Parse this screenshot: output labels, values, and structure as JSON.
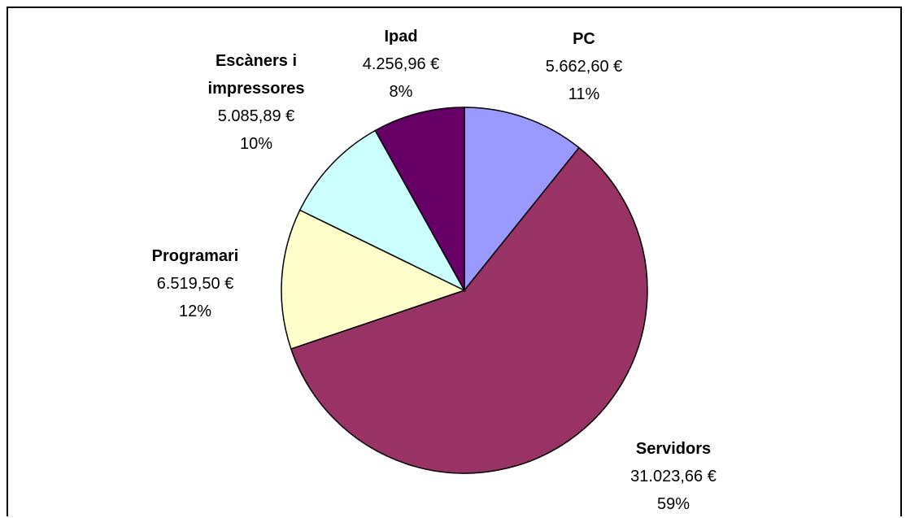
{
  "chart_data": {
    "type": "pie",
    "categories": [
      "PC",
      "Servidors",
      "Programari",
      "Escàners i impressores",
      "Ipad"
    ],
    "values": [
      5662.6,
      31023.66,
      6519.5,
      5085.89,
      4256.96
    ],
    "value_labels": [
      "5.662,60 €",
      "31.023,66 €",
      "6.519,50 €",
      "5.085,89 €",
      "4.256,96 €"
    ],
    "percentages": [
      11,
      59,
      12,
      10,
      8
    ],
    "percentage_labels": [
      "11%",
      "59%",
      "12%",
      "10%",
      "8%"
    ],
    "colors": [
      "#9999ff",
      "#993366",
      "#ffffcc",
      "#ccffff",
      "#660066"
    ]
  }
}
